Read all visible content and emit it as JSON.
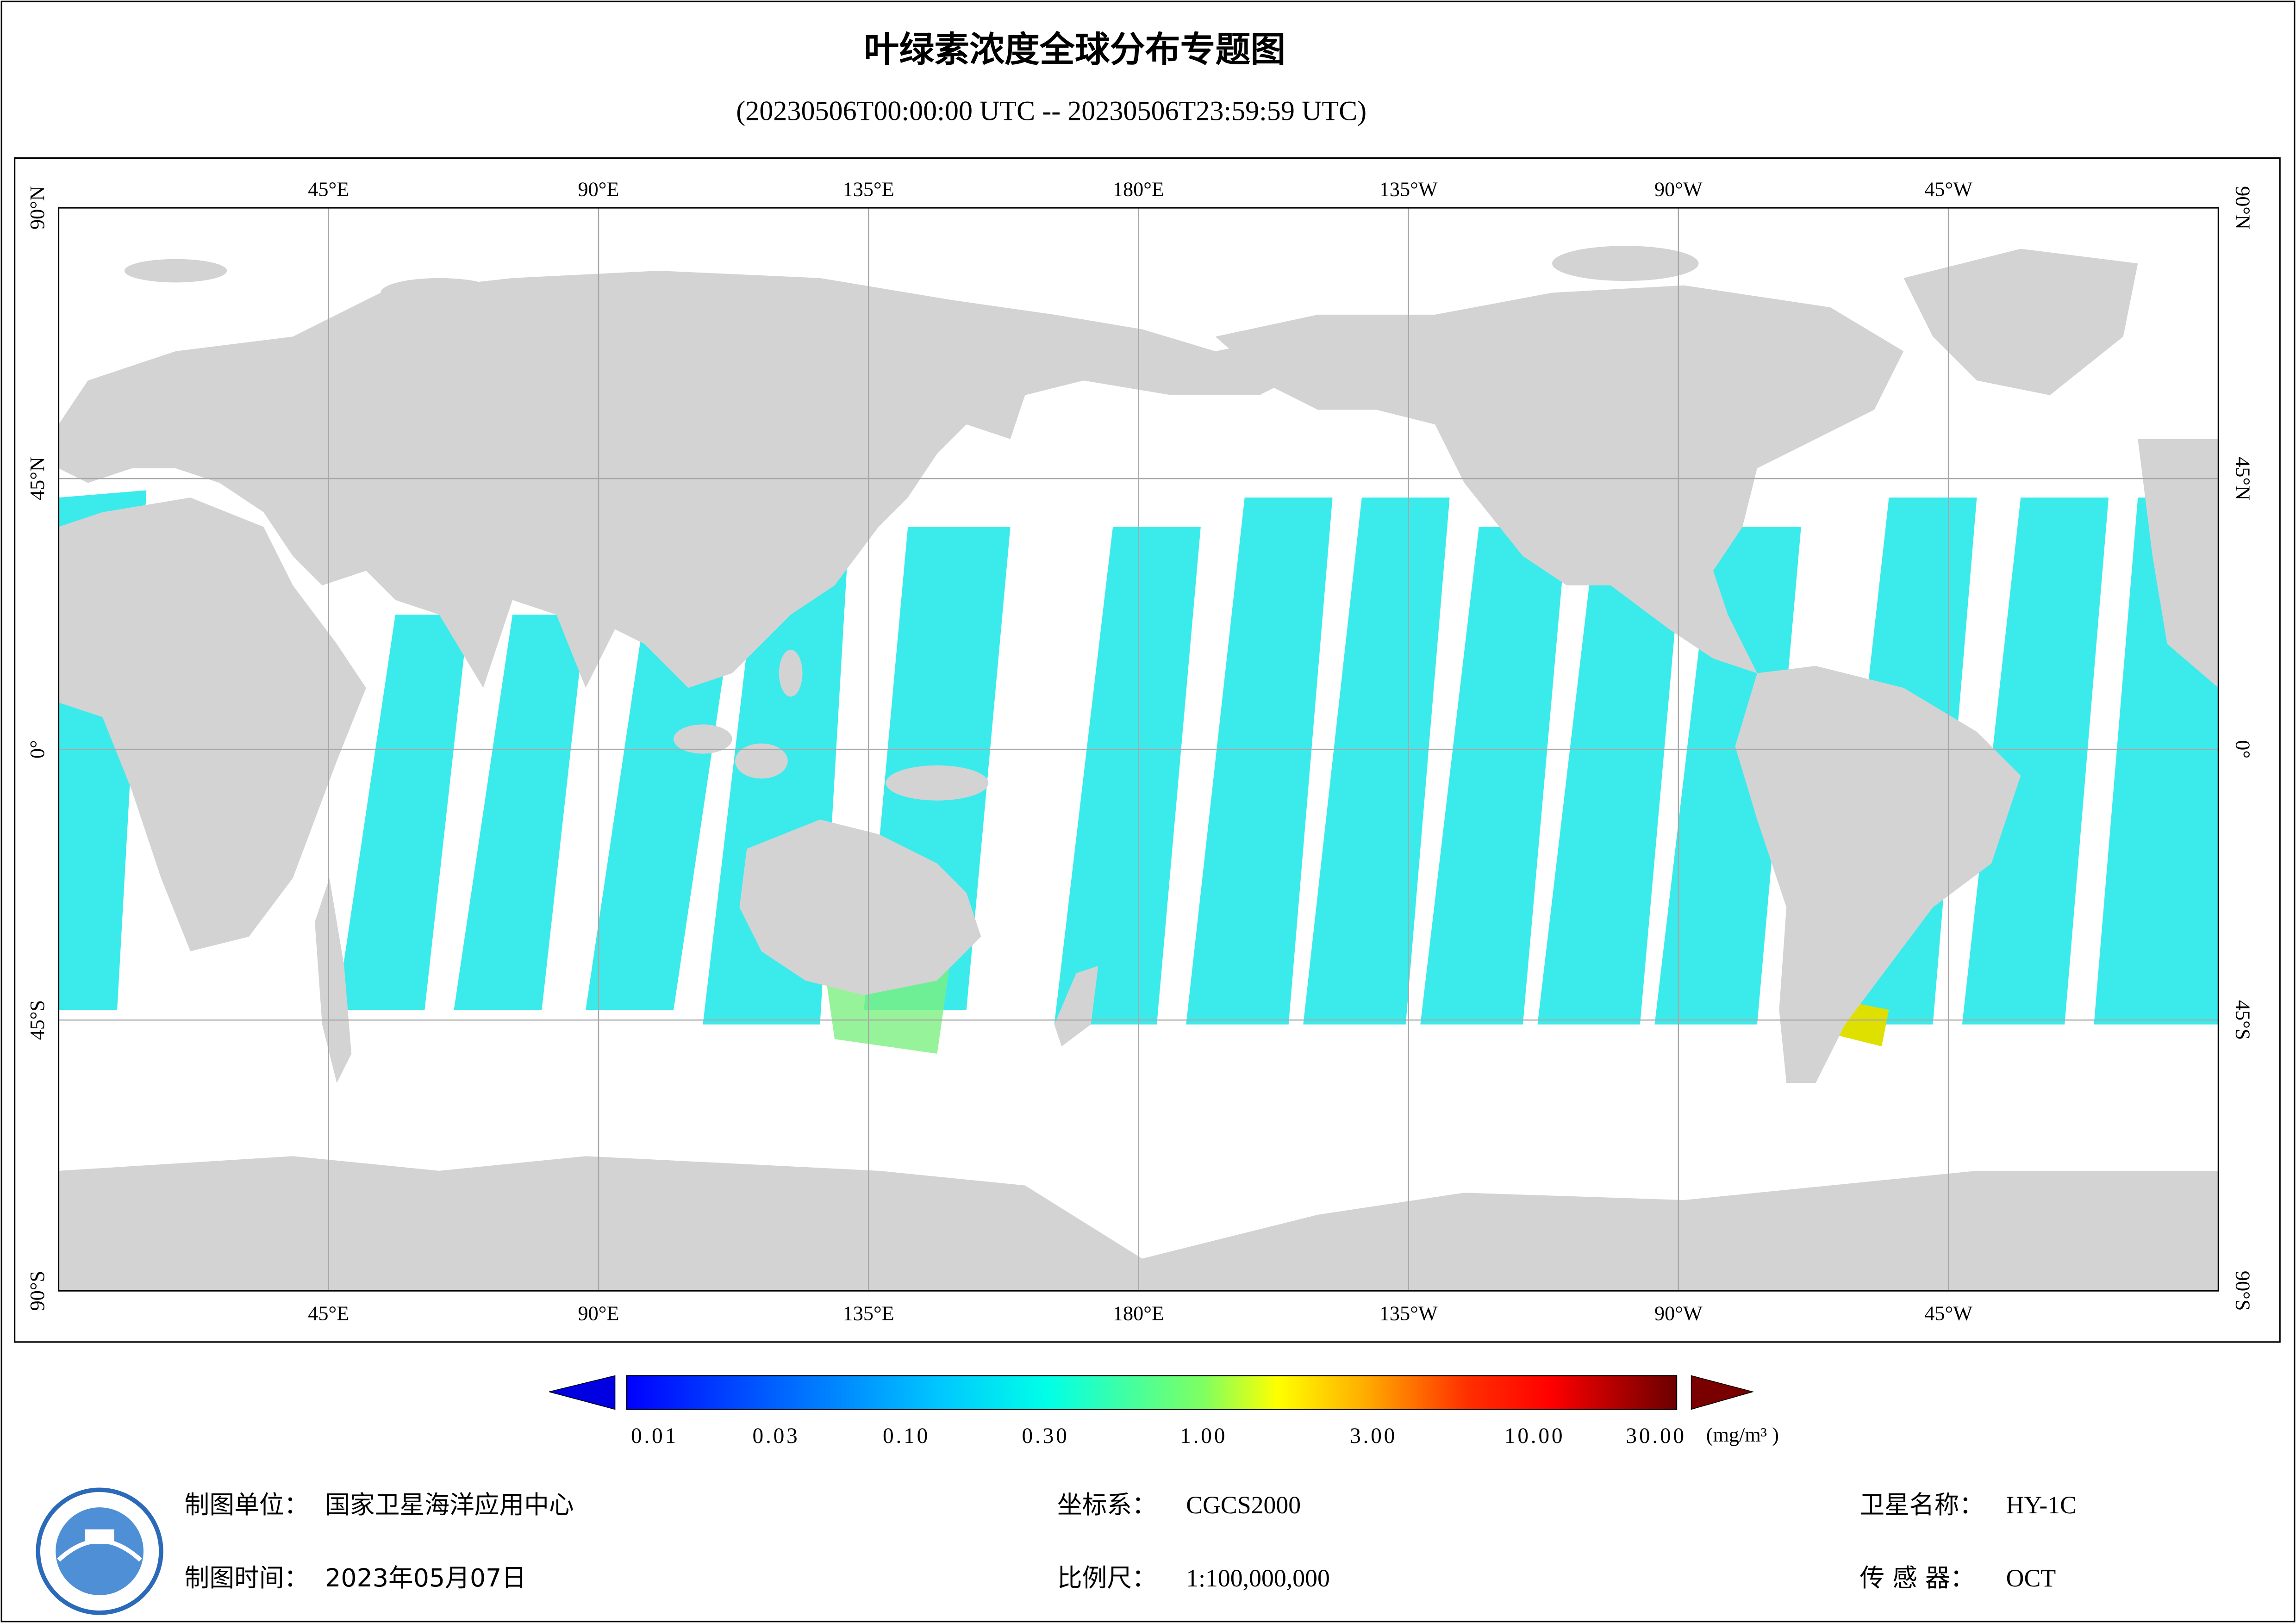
{
  "title": "叶绿素浓度全球分布专题图",
  "subtitle": "(20230506T00:00:00 UTC -- 20230506T23:59:59 UTC)",
  "map": {
    "lon_labels": [
      "45°E",
      "90°E",
      "135°E",
      "180°E",
      "135°W",
      "90°W",
      "45°W"
    ],
    "lat_labels": [
      "90°N",
      "45°N",
      "0°",
      "45°S",
      "90°S"
    ]
  },
  "colorbar": {
    "ticks": [
      "0.01",
      "0.03",
      "0.10",
      "0.30",
      "1.00",
      "3.00",
      "10.00",
      "30.00"
    ],
    "unit": "(mg/m³ )"
  },
  "footer": {
    "unit_label": "制图单位：",
    "unit": "国家卫星海洋应用中心",
    "crs_label": "坐标系：",
    "crs": "CGCS2000",
    "satellite_label": "卫星名称：",
    "satellite": "HY-1C",
    "date_label": "制图时间：",
    "date": "2023年05月07日",
    "scale_label": "比例尺：",
    "scale": "1:100,000,000",
    "sensor_label": "传 感 器：",
    "sensor": "OCT"
  }
}
